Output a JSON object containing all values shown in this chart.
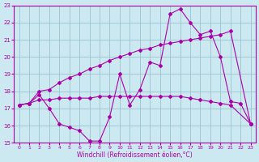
{
  "xlabel": "Windchill (Refroidissement éolien,°C)",
  "bg_color": "#cce8f0",
  "grid_color": "#99c4d0",
  "line_color": "#aa00aa",
  "xlim": [
    -0.5,
    23.5
  ],
  "ylim": [
    15,
    23
  ],
  "yticks": [
    15,
    16,
    17,
    18,
    19,
    20,
    21,
    22,
    23
  ],
  "xticks": [
    0,
    1,
    2,
    3,
    4,
    5,
    6,
    7,
    8,
    9,
    10,
    11,
    12,
    13,
    14,
    15,
    16,
    17,
    18,
    19,
    20,
    21,
    22,
    23
  ],
  "line1_x": [
    0,
    1,
    2,
    3,
    4,
    5,
    6,
    7,
    8,
    9,
    10,
    11,
    12,
    13,
    14,
    15,
    16,
    17,
    18,
    19,
    20,
    21,
    23
  ],
  "line1_y": [
    17.2,
    17.3,
    18.0,
    18.1,
    18.5,
    18.8,
    19.0,
    19.3,
    19.5,
    19.8,
    20.0,
    20.2,
    20.4,
    20.5,
    20.7,
    20.8,
    20.9,
    21.0,
    21.1,
    21.2,
    21.3,
    21.5,
    16.1
  ],
  "line2_x": [
    0,
    1,
    2,
    3,
    4,
    5,
    6,
    7,
    8,
    9,
    10,
    11,
    12,
    13,
    14,
    15,
    16,
    17,
    18,
    19,
    20,
    21,
    23
  ],
  "line2_y": [
    17.2,
    17.3,
    17.5,
    17.5,
    17.6,
    17.6,
    17.6,
    17.6,
    17.7,
    17.7,
    17.7,
    17.7,
    17.7,
    17.7,
    17.7,
    17.7,
    17.7,
    17.6,
    17.5,
    17.4,
    17.3,
    17.2,
    16.1
  ],
  "line3_x": [
    0,
    1,
    2,
    3,
    4,
    5,
    6,
    7,
    8,
    9,
    10,
    11,
    12,
    13,
    14,
    15,
    16,
    17,
    18,
    19,
    20,
    21,
    22,
    23
  ],
  "line3_y": [
    17.2,
    17.3,
    17.8,
    17.0,
    16.1,
    15.9,
    15.7,
    15.1,
    15.1,
    16.5,
    19.0,
    17.2,
    18.1,
    19.7,
    19.5,
    22.5,
    22.8,
    22.0,
    21.3,
    21.5,
    20.0,
    17.4,
    17.3,
    16.1
  ]
}
